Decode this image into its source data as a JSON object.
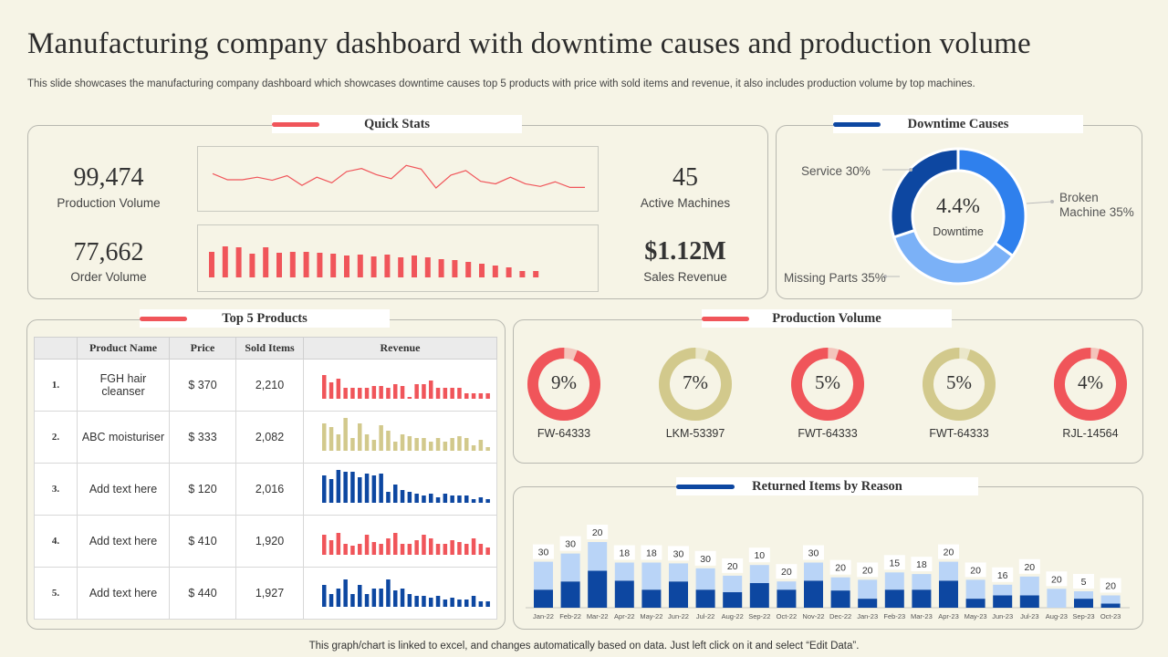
{
  "header": {
    "title": "Manufacturing company dashboard with downtime causes and production volume",
    "subtitle": "This slide showcases the manufacturing company dashboard which showcases downtime causes top 5 products with price with sold items and revenue, it also includes production volume by top machines."
  },
  "footer": "This graph/chart is linked to excel,  and changes automatically based on data. Just left click on it and select “Edit Data”.",
  "colors": {
    "red": "#f0555a",
    "blue": "#0d47a1",
    "mid_blue": "#2f80ed",
    "light_blue": "#7bb1f7",
    "pale_blue": "#b9d4f7",
    "khaki": "#d2c98c"
  },
  "quick_stats": {
    "title": "Quick Stats",
    "production_volume": {
      "value": "99,474",
      "label": "Production Volume"
    },
    "order_volume": {
      "value": "77,662",
      "label": "Order Volume"
    },
    "active_machines": {
      "value": "45",
      "label": "Active Machines"
    },
    "sales_revenue": {
      "value": "$1.12M",
      "label": "Sales Revenue"
    }
  },
  "downtime": {
    "title": "Downtime Causes",
    "center_value": "4.4%",
    "center_label": "Downtime",
    "labels": {
      "service": "Service 30%",
      "broken_line1": "Broken",
      "broken_line2": "Machine 35%",
      "missing": "Missing Parts 35%"
    }
  },
  "products": {
    "title": "Top 5 Products",
    "headers": [
      "Product Name",
      "Price",
      "Sold Items",
      "Revenue"
    ],
    "rows": [
      {
        "num": "1.",
        "name": "FGH hair cleanser",
        "price": "$ 370",
        "sold": "2,210",
        "color": "red"
      },
      {
        "num": "2.",
        "name": "ABC moisturiser",
        "price": "$ 333",
        "sold": "2,082",
        "color": "khaki"
      },
      {
        "num": "3.",
        "name": "Add text here",
        "price": "$ 120",
        "sold": "2,016",
        "color": "blue"
      },
      {
        "num": "4.",
        "name": "Add text here",
        "price": "$ 410",
        "sold": "1,920",
        "color": "red"
      },
      {
        "num": "5.",
        "name": "Add text here",
        "price": "$ 440",
        "sold": "1,927",
        "color": "blue"
      }
    ]
  },
  "production_volume": {
    "title": "Production Volume",
    "machines": [
      {
        "label": "FW-64333",
        "pct": "9%",
        "fraction": 0.94,
        "color": "red"
      },
      {
        "label": "LKM-53397",
        "pct": "7%",
        "fraction": 0.94,
        "color": "khaki"
      },
      {
        "label": "FWT-64333",
        "pct": "5%",
        "fraction": 0.95,
        "color": "red"
      },
      {
        "label": "FWT-64333",
        "pct": "5%",
        "fraction": 0.95,
        "color": "khaki"
      },
      {
        "label": "RJL-14564",
        "pct": "4%",
        "fraction": 0.96,
        "color": "red"
      }
    ]
  },
  "returned": {
    "title": "Returned Items by Reason"
  },
  "chart_data": [
    {
      "type": "line",
      "values": [
        62,
        50,
        50,
        55,
        49,
        58,
        39,
        55,
        44,
        66,
        72,
        60,
        52,
        78,
        71,
        34,
        59,
        68,
        47,
        42,
        55,
        42,
        37,
        46,
        35,
        35
      ]
    },
    {
      "type": "bar",
      "values": [
        28,
        34,
        33,
        26,
        33,
        27,
        28,
        28,
        27,
        26,
        24,
        25,
        23,
        25,
        22,
        24,
        22,
        20,
        19,
        17,
        15,
        13,
        11,
        7,
        7
      ]
    },
    {
      "type": "pie",
      "categories": [
        "Broken Machine",
        "Missing Parts",
        "Service"
      ],
      "values": [
        35,
        35,
        30
      ]
    },
    {
      "type": "bar",
      "stacked": true,
      "categories": [
        "Jan-22",
        "Feb-22",
        "Mar-22",
        "Apr-22",
        "May-22",
        "Jun-22",
        "Jul-22",
        "Aug-22",
        "Sep-22",
        "Oct-22",
        "Nov-22",
        "Dec-22",
        "Jan-23",
        "Feb-23",
        "Mar-23",
        "Apr-23",
        "May-23",
        "Jun-23",
        "Jul-23",
        "Aug-23",
        "Sep-23",
        "Oct-23"
      ],
      "series": [
        {
          "values": [
            22,
            32,
            45,
            33,
            22,
            32,
            22,
            19,
            30,
            22,
            33,
            21,
            11,
            22,
            22,
            33,
            11,
            15,
            15,
            0,
            11,
            5
          ]
        },
        {
          "values": [
            34,
            34,
            35,
            22,
            33,
            22,
            26,
            20,
            22,
            10,
            22,
            16,
            23,
            21,
            19,
            23,
            23,
            13,
            23,
            23,
            9,
            10
          ]
        }
      ],
      "data_labels": [
        "30",
        "30",
        "20",
        "18",
        "18",
        "30",
        "30",
        "20",
        "10",
        "20",
        "30",
        "20",
        "20",
        "15",
        "18",
        "20",
        "20",
        "16",
        "20",
        "20",
        "5",
        "20"
      ]
    }
  ],
  "revenue_minis": [
    [
      26,
      18,
      22,
      12,
      12,
      12,
      12,
      14,
      14,
      12,
      16,
      14,
      2,
      16,
      16,
      20,
      12,
      12,
      12,
      12,
      6,
      6,
      6,
      6
    ],
    [
      30,
      26,
      18,
      36,
      14,
      30,
      18,
      12,
      28,
      22,
      10,
      18,
      16,
      14,
      14,
      10,
      14,
      10,
      14,
      16,
      14,
      6,
      12,
      4
    ],
    [
      30,
      26,
      38,
      34,
      34,
      28,
      32,
      30,
      32,
      12,
      20,
      14,
      12,
      10,
      8,
      10,
      6,
      10,
      8,
      8,
      8,
      4,
      6,
      4
    ],
    [
      22,
      16,
      24,
      12,
      10,
      12,
      22,
      14,
      12,
      18,
      24,
      12,
      12,
      16,
      22,
      18,
      12,
      12,
      16,
      14,
      12,
      18,
      12,
      8
    ],
    [
      24,
      14,
      20,
      30,
      14,
      24,
      14,
      20,
      20,
      30,
      18,
      20,
      14,
      12,
      12,
      10,
      12,
      8,
      10,
      8,
      8,
      12,
      6,
      6
    ]
  ]
}
